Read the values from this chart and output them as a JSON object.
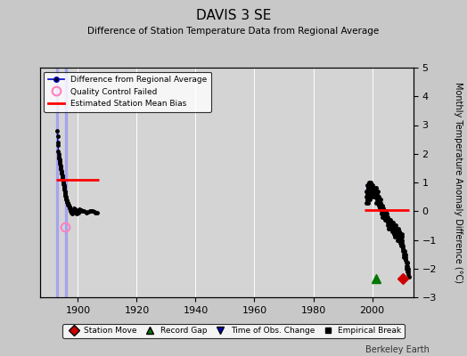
{
  "title": "DAVIS 3 SE",
  "subtitle": "Difference of Station Temperature Data from Regional Average",
  "ylabel_right": "Monthly Temperature Anomaly Difference (°C)",
  "xlim": [
    1887,
    2014
  ],
  "ylim": [
    -3,
    5
  ],
  "yticks": [
    -3,
    -2,
    -1,
    0,
    1,
    2,
    3,
    4,
    5
  ],
  "xticks": [
    1900,
    1920,
    1940,
    1960,
    1980,
    2000
  ],
  "bg_color": "#c8c8c8",
  "plot_bg_color": "#d4d4d4",
  "watermark": "Berkeley Earth",
  "seg1_x0": 1892.5,
  "seg1_x1": 1907.0,
  "seg1_bias": 1.1,
  "seg2_x0": 1997.5,
  "seg2_x1": 2012.5,
  "seg2_bias": 0.05,
  "early_x": [
    1893.0,
    1893.08,
    1893.17,
    1893.25,
    1893.33,
    1893.42,
    1893.5,
    1893.58,
    1893.67,
    1893.75,
    1893.83,
    1893.92,
    1894.0,
    1894.08,
    1894.17,
    1894.25,
    1894.33,
    1894.42,
    1894.5,
    1894.58,
    1894.67,
    1894.75,
    1894.83,
    1894.92,
    1895.0,
    1895.08,
    1895.17,
    1895.25,
    1895.33,
    1895.42,
    1895.5,
    1895.58,
    1895.67,
    1895.75,
    1895.83,
    1895.92,
    1896.0,
    1896.08,
    1896.17,
    1896.25,
    1896.33,
    1896.42,
    1896.5,
    1896.58,
    1896.67,
    1896.75,
    1896.83,
    1896.92,
    1897.0,
    1897.08,
    1897.17,
    1897.25,
    1897.33,
    1897.42,
    1897.5,
    1897.58,
    1897.67,
    1897.75,
    1897.83,
    1897.92,
    1898.0,
    1898.08,
    1898.17,
    1898.25,
    1898.33,
    1898.42,
    1898.5,
    1898.58,
    1898.67,
    1898.75,
    1898.83,
    1898.92,
    1899.0,
    1899.08,
    1899.17,
    1899.25,
    1899.33,
    1899.42,
    1899.5,
    1900.0,
    1900.08,
    1900.17,
    1900.25,
    1900.33,
    1900.42,
    1900.5,
    1901.0,
    1901.5,
    1902.0,
    1902.5,
    1903.0,
    1903.5,
    1904.0,
    1904.5,
    1905.0,
    1905.5,
    1906.0,
    1906.5
  ],
  "early_y": [
    2.8,
    2.6,
    2.4,
    2.3,
    2.1,
    2.0,
    1.9,
    1.85,
    1.8,
    1.75,
    1.7,
    1.65,
    1.6,
    1.55,
    1.5,
    1.45,
    1.4,
    1.35,
    1.3,
    1.25,
    1.2,
    1.15,
    1.1,
    1.05,
    1.0,
    0.95,
    0.9,
    0.85,
    0.8,
    0.75,
    0.7,
    0.65,
    0.6,
    0.55,
    0.5,
    0.45,
    0.4,
    0.38,
    0.36,
    0.34,
    0.32,
    0.3,
    0.28,
    0.26,
    0.24,
    0.22,
    0.2,
    0.18,
    0.16,
    0.14,
    0.12,
    0.1,
    0.08,
    0.06,
    0.04,
    0.02,
    0.0,
    -0.02,
    -0.04,
    -0.06,
    -0.08,
    -0.06,
    -0.04,
    -0.02,
    0.0,
    0.02,
    0.04,
    0.06,
    0.08,
    0.1,
    0.08,
    0.06,
    0.04,
    0.02,
    0.0,
    -0.02,
    -0.04,
    -0.06,
    -0.08,
    -0.06,
    -0.04,
    -0.02,
    0.0,
    0.02,
    0.04,
    0.06,
    0.04,
    0.02,
    0.0,
    -0.02,
    -0.04,
    -0.02,
    0.0,
    0.02,
    0.0,
    -0.02,
    -0.04,
    -0.06
  ],
  "late_x": [
    1998.0,
    1998.08,
    1998.17,
    1998.25,
    1998.33,
    1998.42,
    1998.5,
    1998.58,
    1998.67,
    1998.75,
    1998.83,
    1998.92,
    1999.0,
    1999.08,
    1999.17,
    1999.25,
    1999.33,
    1999.42,
    1999.5,
    1999.58,
    1999.67,
    1999.75,
    1999.83,
    1999.92,
    2000.0,
    2000.08,
    2000.17,
    2000.25,
    2000.33,
    2000.42,
    2000.5,
    2000.58,
    2000.67,
    2000.75,
    2000.83,
    2000.92,
    2001.0,
    2001.08,
    2001.17,
    2001.25,
    2001.33,
    2001.42,
    2001.5,
    2001.58,
    2001.67,
    2001.75,
    2001.83,
    2001.92,
    2002.0,
    2002.08,
    2002.17,
    2002.25,
    2002.33,
    2002.42,
    2002.5,
    2002.58,
    2002.67,
    2002.75,
    2002.83,
    2002.92,
    2003.0,
    2003.08,
    2003.17,
    2003.25,
    2003.33,
    2003.42,
    2003.5,
    2003.58,
    2003.67,
    2003.75,
    2003.83,
    2003.92,
    2004.0,
    2004.08,
    2004.17,
    2004.25,
    2004.33,
    2004.42,
    2004.5,
    2004.58,
    2004.67,
    2004.75,
    2004.83,
    2004.92,
    2005.0,
    2005.08,
    2005.17,
    2005.25,
    2005.33,
    2005.42,
    2005.5,
    2005.58,
    2005.67,
    2005.75,
    2005.83,
    2005.92,
    2006.0,
    2006.08,
    2006.17,
    2006.25,
    2006.33,
    2006.42,
    2006.5,
    2006.58,
    2006.67,
    2006.75,
    2006.83,
    2006.92,
    2007.0,
    2007.08,
    2007.17,
    2007.25,
    2007.33,
    2007.42,
    2007.5,
    2007.58,
    2007.67,
    2007.75,
    2007.83,
    2007.92,
    2008.0,
    2008.08,
    2008.17,
    2008.25,
    2008.33,
    2008.42,
    2008.5,
    2008.58,
    2008.67,
    2008.75,
    2008.83,
    2008.92,
    2009.0,
    2009.08,
    2009.17,
    2009.25,
    2009.33,
    2009.42,
    2009.5,
    2009.58,
    2009.67,
    2009.75,
    2009.83,
    2009.92,
    2010.0,
    2010.08,
    2010.17,
    2010.25,
    2010.33,
    2010.42,
    2010.5,
    2010.58,
    2010.67,
    2010.75,
    2010.83,
    2010.92,
    2011.0,
    2011.08,
    2011.17,
    2011.25,
    2011.33,
    2011.42,
    2011.5,
    2011.58,
    2011.67,
    2011.75,
    2011.83,
    2011.92,
    2012.0,
    2012.08,
    2012.17,
    2012.25,
    2012.33,
    2012.42
  ],
  "late_y": [
    0.5,
    0.3,
    0.7,
    0.9,
    0.4,
    0.6,
    0.8,
    0.5,
    0.3,
    0.7,
    0.9,
    1.0,
    0.8,
    0.6,
    0.4,
    0.7,
    0.9,
    1.0,
    0.8,
    0.6,
    0.5,
    0.7,
    0.9,
    0.8,
    0.6,
    0.7,
    0.8,
    0.9,
    0.7,
    0.5,
    0.6,
    0.8,
    0.7,
    0.5,
    0.6,
    0.8,
    0.5,
    0.6,
    0.7,
    0.8,
    0.6,
    0.5,
    0.3,
    0.4,
    0.5,
    0.6,
    0.7,
    0.5,
    0.3,
    0.4,
    0.5,
    0.3,
    0.2,
    0.4,
    0.3,
    0.1,
    0.2,
    0.4,
    0.3,
    0.2,
    0.1,
    0.0,
    -0.1,
    0.1,
    0.2,
    0.0,
    -0.1,
    -0.2,
    0.0,
    0.1,
    -0.1,
    -0.2,
    -0.1,
    0.0,
    -0.2,
    -0.3,
    -0.1,
    0.0,
    -0.2,
    -0.3,
    -0.1,
    0.0,
    -0.2,
    -0.3,
    -0.1,
    -0.2,
    -0.3,
    -0.5,
    -0.4,
    -0.2,
    -0.3,
    -0.5,
    -0.6,
    -0.4,
    -0.3,
    -0.5,
    -0.3,
    -0.4,
    -0.5,
    -0.3,
    -0.4,
    -0.5,
    -0.6,
    -0.4,
    -0.5,
    -0.6,
    -0.7,
    -0.5,
    -0.4,
    -0.5,
    -0.6,
    -0.7,
    -0.8,
    -0.6,
    -0.7,
    -0.8,
    -0.9,
    -0.7,
    -0.6,
    -0.8,
    -0.5,
    -0.6,
    -0.7,
    -0.8,
    -0.6,
    -0.7,
    -0.8,
    -0.9,
    -1.0,
    -0.8,
    -0.7,
    -0.9,
    -0.6,
    -0.7,
    -0.8,
    -0.9,
    -1.0,
    -0.8,
    -1.0,
    -1.1,
    -0.9,
    -1.0,
    -1.1,
    -1.2,
    -0.8,
    -0.9,
    -1.0,
    -1.1,
    -1.3,
    -1.4,
    -1.2,
    -1.3,
    -1.5,
    -1.6,
    -1.4,
    -1.5,
    -1.4,
    -1.5,
    -1.6,
    -1.7,
    -1.5,
    -1.6,
    -1.7,
    -1.8,
    -2.0,
    -1.9,
    -1.8,
    -2.1,
    -1.8,
    -1.9,
    -2.0,
    -2.1,
    -2.2,
    -2.3
  ],
  "qc_x": [
    1895.75
  ],
  "qc_y": [
    -0.55
  ],
  "station_move_x": [
    2010.5
  ],
  "station_move_y": [
    -2.35
  ],
  "record_gap_x": [
    2001.5
  ],
  "record_gap_y": [
    -2.35
  ],
  "line_color": "#0000cc",
  "marker_color": "#000000",
  "bias_color": "#ff0000",
  "qc_color": "#ff80c0",
  "station_move_color": "#cc0000",
  "record_gap_color": "#007700"
}
